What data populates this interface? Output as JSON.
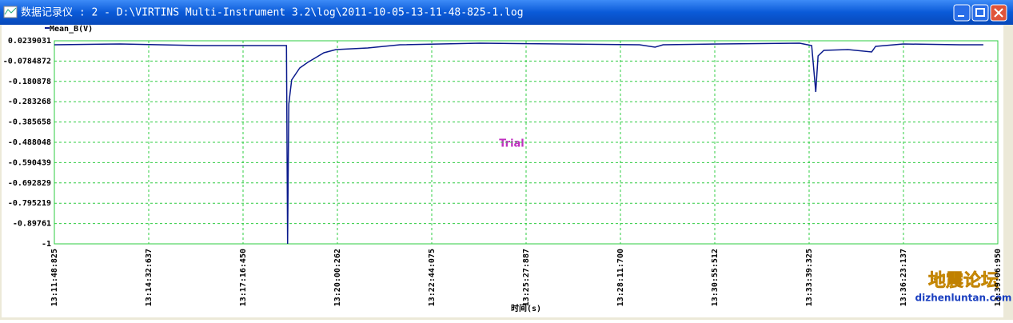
{
  "window": {
    "title": "数据记录仪 : 2 - D:\\VIRTINS Multi-Instrument 3.2\\log\\2011-10-05-13-11-48-825-1.log"
  },
  "watermark": {
    "text": "地震论坛",
    "url": "dizhenluntan.com"
  },
  "chart_data": {
    "type": "line",
    "x_label": "时间(s)",
    "annotation": "Trial",
    "x": [
      0,
      114,
      253,
      364,
      403,
      405,
      407,
      412,
      426,
      440,
      454,
      468,
      489,
      544,
      600,
      739,
      877,
      1016,
      1043,
      1057,
      1155,
      1294,
      1315,
      1322,
      1326,
      1336,
      1378,
      1419,
      1426,
      1474,
      1572,
      1613
    ],
    "series": [
      {
        "name": "Mean_B(V)",
        "color": "#0a1a8c",
        "values": [
          0.0037,
          0.0078,
          -0.0003,
          -0.0003,
          -0.0003,
          -1,
          -0.2945,
          -0.1736,
          -0.113,
          -0.085,
          -0.0608,
          -0.0366,
          -0.0204,
          -0.0124,
          0.0037,
          0.0118,
          0.0078,
          0.0037,
          -0.0083,
          0.0037,
          0.0078,
          0.0118,
          -0.0003,
          -0.234,
          -0.0527,
          -0.0245,
          -0.0204,
          -0.0325,
          -0.0043,
          0.0078,
          0.0037,
          0.0037
        ]
      }
    ],
    "xlim": [
      0,
      1638.125
    ],
    "xticks": [
      {
        "value": 0,
        "label": "13:11:48:825"
      },
      {
        "value": 163.812,
        "label": "13:14:32:637"
      },
      {
        "value": 327.625,
        "label": "13:17:16:450"
      },
      {
        "value": 491.437,
        "label": "13:20:00:262"
      },
      {
        "value": 655.25,
        "label": "13:22:44:075"
      },
      {
        "value": 819.062,
        "label": "13:25:27:887"
      },
      {
        "value": 982.875,
        "label": "13:28:11:700"
      },
      {
        "value": 1146.687,
        "label": "13:30:55:512"
      },
      {
        "value": 1310.5,
        "label": "13:33:39:325"
      },
      {
        "value": 1474.312,
        "label": "13:36:23:137"
      },
      {
        "value": 1638.125,
        "label": "13:39:06:950"
      }
    ],
    "ylim": [
      -1,
      0.0239031
    ],
    "yticks": [
      0.0239031,
      -0.0784872,
      -0.180878,
      -0.283268,
      -0.385658,
      -0.488048,
      -0.590439,
      -0.692829,
      -0.795219,
      -0.89761,
      -1
    ],
    "grid": true
  }
}
